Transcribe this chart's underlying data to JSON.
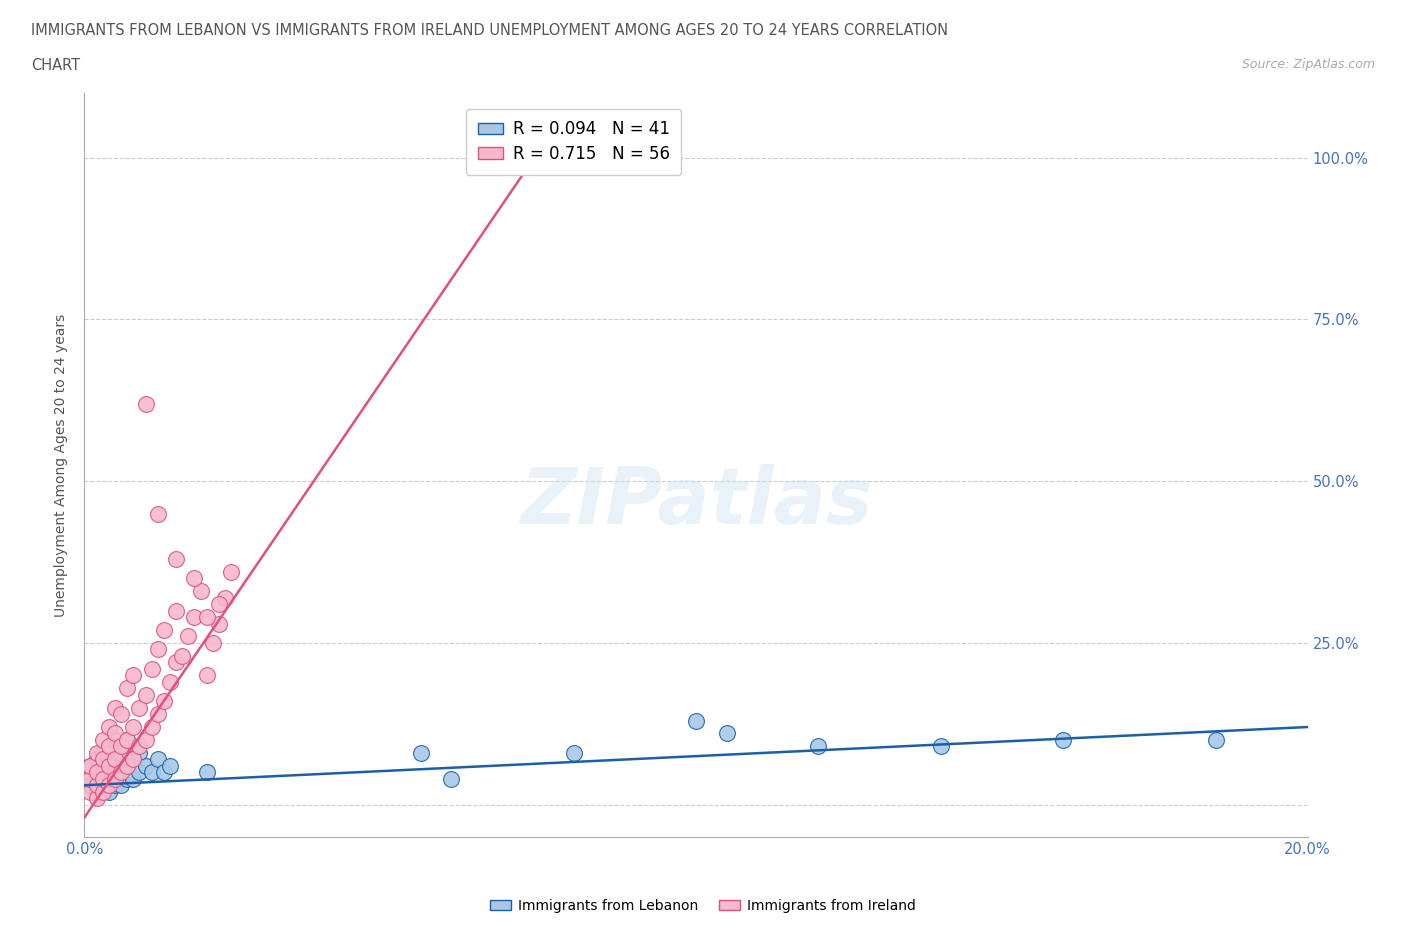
{
  "title_line1": "IMMIGRANTS FROM LEBANON VS IMMIGRANTS FROM IRELAND UNEMPLOYMENT AMONG AGES 20 TO 24 YEARS CORRELATION",
  "title_line2": "CHART",
  "source": "Source: ZipAtlas.com",
  "ylabel": "Unemployment Among Ages 20 to 24 years",
  "xlim": [
    0.0,
    0.2
  ],
  "ylim": [
    -0.05,
    1.1
  ],
  "xticks": [
    0.0,
    0.05,
    0.1,
    0.15,
    0.2
  ],
  "xticklabels": [
    "0.0%",
    "",
    "",
    "",
    "20.0%"
  ],
  "yticks": [
    0.0,
    0.25,
    0.5,
    0.75,
    1.0
  ],
  "yticklabels": [
    "",
    "25.0%",
    "50.0%",
    "75.0%",
    "100.0%"
  ],
  "R_lebanon": 0.094,
  "N_lebanon": 41,
  "R_ireland": 0.715,
  "N_ireland": 56,
  "color_lebanon": "#a8c8e8",
  "color_ireland": "#f8b8cc",
  "line_color_lebanon": "#1a5fa8",
  "line_color_ireland": "#e0507a",
  "background_color": "#ffffff",
  "watermark": "ZIPatlas",
  "lebanon_x": [
    0.001,
    0.001,
    0.002,
    0.002,
    0.002,
    0.003,
    0.003,
    0.003,
    0.004,
    0.004,
    0.004,
    0.004,
    0.005,
    0.005,
    0.005,
    0.005,
    0.006,
    0.006,
    0.006,
    0.007,
    0.007,
    0.007,
    0.008,
    0.008,
    0.009,
    0.009,
    0.01,
    0.011,
    0.012,
    0.013,
    0.014,
    0.02,
    0.055,
    0.06,
    0.08,
    0.1,
    0.105,
    0.12,
    0.14,
    0.16,
    0.185
  ],
  "lebanon_y": [
    0.03,
    0.06,
    0.02,
    0.04,
    0.07,
    0.03,
    0.05,
    0.08,
    0.02,
    0.04,
    0.06,
    0.09,
    0.03,
    0.05,
    0.07,
    0.1,
    0.03,
    0.05,
    0.08,
    0.04,
    0.06,
    0.1,
    0.04,
    0.07,
    0.05,
    0.08,
    0.06,
    0.05,
    0.07,
    0.05,
    0.06,
    0.05,
    0.08,
    0.04,
    0.08,
    0.13,
    0.11,
    0.09,
    0.09,
    0.1,
    0.1
  ],
  "ireland_x": [
    0.001,
    0.001,
    0.001,
    0.002,
    0.002,
    0.002,
    0.002,
    0.003,
    0.003,
    0.003,
    0.003,
    0.004,
    0.004,
    0.004,
    0.004,
    0.005,
    0.005,
    0.005,
    0.005,
    0.006,
    0.006,
    0.006,
    0.007,
    0.007,
    0.007,
    0.008,
    0.008,
    0.008,
    0.009,
    0.009,
    0.01,
    0.01,
    0.011,
    0.011,
    0.012,
    0.012,
    0.013,
    0.013,
    0.014,
    0.015,
    0.015,
    0.016,
    0.017,
    0.018,
    0.019,
    0.02,
    0.021,
    0.022,
    0.023,
    0.024,
    0.01,
    0.012,
    0.015,
    0.018,
    0.02,
    0.022
  ],
  "ireland_y": [
    0.02,
    0.04,
    0.06,
    0.01,
    0.03,
    0.05,
    0.08,
    0.02,
    0.04,
    0.07,
    0.1,
    0.03,
    0.06,
    0.09,
    0.12,
    0.04,
    0.07,
    0.11,
    0.15,
    0.05,
    0.09,
    0.14,
    0.06,
    0.1,
    0.18,
    0.07,
    0.12,
    0.2,
    0.09,
    0.15,
    0.1,
    0.17,
    0.12,
    0.21,
    0.14,
    0.24,
    0.16,
    0.27,
    0.19,
    0.22,
    0.3,
    0.23,
    0.26,
    0.29,
    0.33,
    0.2,
    0.25,
    0.28,
    0.32,
    0.36,
    0.62,
    0.45,
    0.38,
    0.35,
    0.29,
    0.31
  ],
  "ireland_line_x": [
    0.0,
    0.075
  ],
  "ireland_line_y": [
    -0.02,
    1.02
  ],
  "lebanon_line_x": [
    0.0,
    0.2
  ],
  "lebanon_line_y": [
    0.03,
    0.12
  ]
}
